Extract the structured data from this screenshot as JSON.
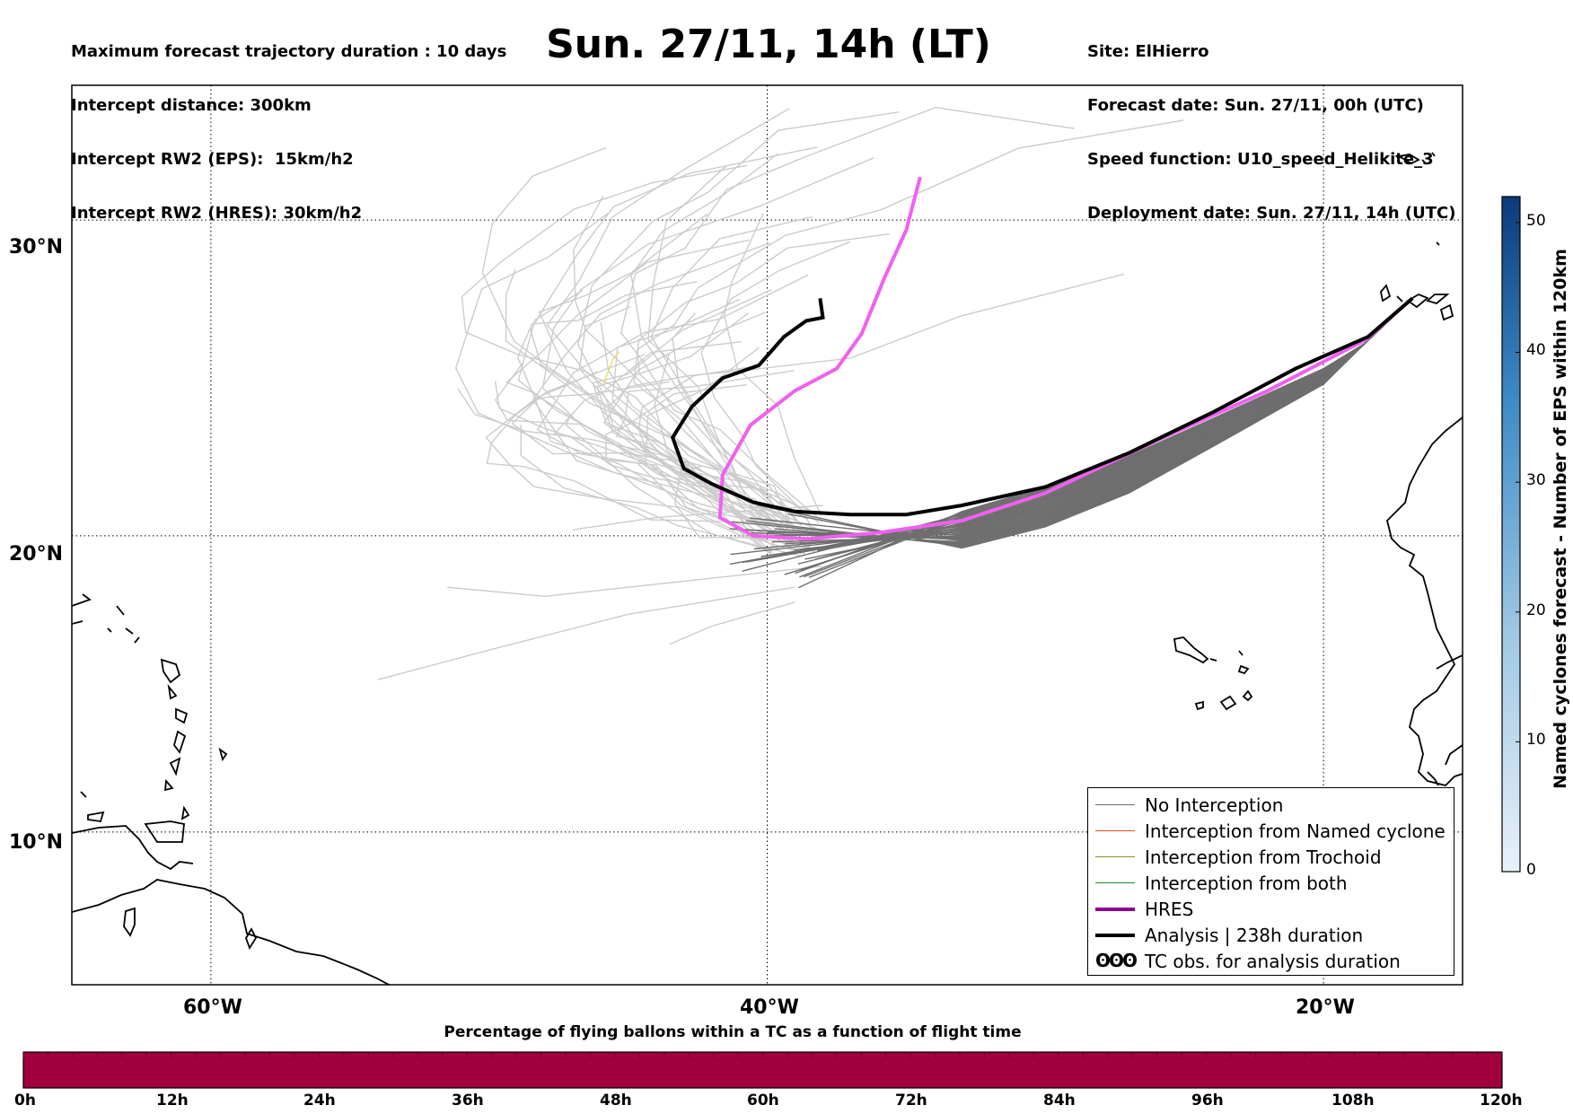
{
  "header": {
    "left_lines": [
      "Maximum forecast trajectory duration : 10 days",
      "Intercept distance: 300km",
      "Intercept RW2 (EPS):  15km/h2",
      "Intercept RW2 (HRES): 30km/h2"
    ],
    "title": "Sun. 27/11, 14h (LT)",
    "right_lines": [
      "Site: ElHierro",
      "Forecast date: Sun. 27/11, 00h (UTC)",
      "Speed function: U10_speed_Helikite_3",
      "Deployment date: Sun. 27/11, 14h (UTC)"
    ]
  },
  "map": {
    "lat_labels": [
      "30°N",
      "20°N",
      "10°N"
    ],
    "lon_labels": [
      "60°W",
      "40°W",
      "20°W"
    ],
    "lat_values": [
      30,
      20,
      10
    ],
    "lon_values": [
      -60,
      -40,
      -20
    ],
    "extent": {
      "lon_min": -65,
      "lon_max": -15,
      "lat_min": 4.7,
      "lat_max": 34
    },
    "colors": {
      "no_interception": "#6e6e6e",
      "eps_far": "#cccccc",
      "hres": "#f060f0",
      "hres_legend": "#8b008b",
      "analysis": "#000000",
      "interception_named_cyclone": "#e6501e",
      "interception_trochoid": "#8c8c1e",
      "interception_both": "#1e8c1e"
    }
  },
  "legend": {
    "items": [
      {
        "label": "No Interception",
        "color": "#6e6e6e",
        "width": 1.2
      },
      {
        "label": "Interception from Named cyclone",
        "color": "#e6501e",
        "width": 1.2
      },
      {
        "label": "Interception from Trochoid",
        "color": "#8c8c1e",
        "width": 1.2
      },
      {
        "label": "Interception from both",
        "color": "#1e8c1e",
        "width": 1.2
      },
      {
        "label": "HRES",
        "color": "#8b008b",
        "width": 4
      },
      {
        "label": "Analysis | 238h duration",
        "color": "#000000",
        "width": 4
      },
      {
        "label": "TC obs. for analysis duration",
        "symbol": "ʘʘʘ"
      }
    ]
  },
  "colorbar": {
    "label": "Named cyclones forecast - Number of EPS within 120km",
    "ticks": [
      "0",
      "10",
      "20",
      "30",
      "40",
      "50"
    ],
    "tick_values": [
      0,
      10,
      20,
      30,
      40,
      50
    ],
    "max": 52,
    "color_low": "#e8f1fa",
    "color_high": "#0b3a7a"
  },
  "bottom_bar": {
    "title": "Percentage of flying ballons within a TC as a function of flight time",
    "fill_color": "#a0003c",
    "ticks": [
      "0h",
      "12h",
      "24h",
      "36h",
      "48h",
      "60h",
      "72h",
      "84h",
      "96h",
      "108h",
      "120h"
    ]
  }
}
